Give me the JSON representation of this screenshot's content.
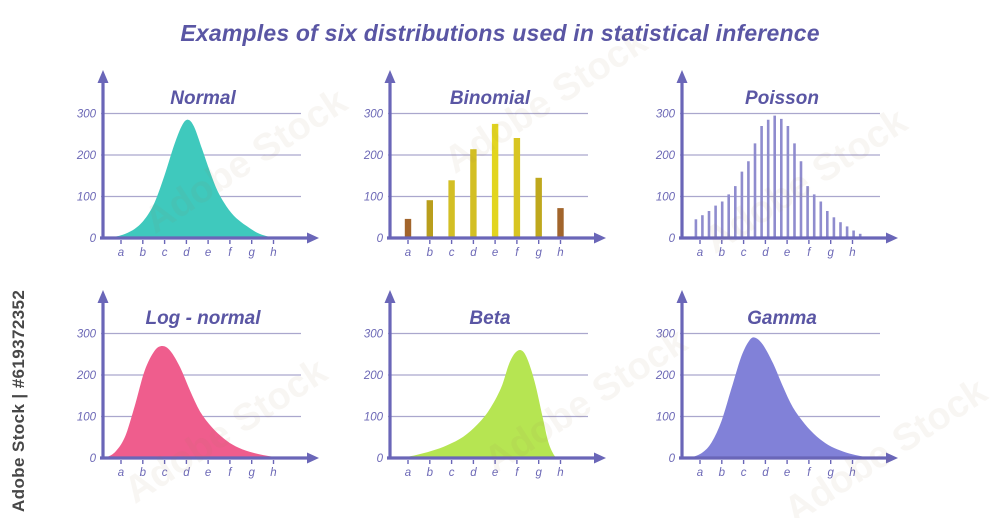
{
  "page": {
    "title": "Examples of six distributions used in statistical inference",
    "title_color": "#5a56a4",
    "background_color": "#ffffff"
  },
  "watermark": {
    "side_text": "Adobe Stock | #619372352",
    "diagonal_text": "Adobe Stock"
  },
  "axes": {
    "axis_color": "#6a66b8",
    "grid_color": "#aaa7cd",
    "label_color": "#6c68b6",
    "y_tick_labels": [
      "0",
      "100",
      "200",
      "300"
    ],
    "y_tick_values": [
      0,
      100,
      200,
      300
    ],
    "x_tick_labels": [
      "a",
      "b",
      "c",
      "d",
      "e",
      "f",
      "g",
      "h"
    ],
    "ylim": [
      0,
      300
    ],
    "grid": "horizontal-only",
    "legend": "none"
  },
  "chart_data": [
    {
      "title": "Normal",
      "type": "area",
      "color": "#3fc9bd",
      "peak_value": 285,
      "peak_at": "d",
      "points": [
        [
          0.03,
          0
        ],
        [
          0.1,
          8
        ],
        [
          0.16,
          22
        ],
        [
          0.21,
          45
        ],
        [
          0.26,
          85
        ],
        [
          0.31,
          150
        ],
        [
          0.36,
          225
        ],
        [
          0.4,
          272
        ],
        [
          0.43,
          285
        ],
        [
          0.46,
          268
        ],
        [
          0.5,
          215
        ],
        [
          0.54,
          160
        ],
        [
          0.58,
          112
        ],
        [
          0.63,
          72
        ],
        [
          0.68,
          45
        ],
        [
          0.74,
          24
        ],
        [
          0.79,
          10
        ],
        [
          0.84,
          3
        ],
        [
          0.88,
          0
        ]
      ]
    },
    {
      "title": "Binomial",
      "type": "bar",
      "categories": [
        "a",
        "b",
        "c",
        "d",
        "e",
        "f",
        "g",
        "h"
      ],
      "values": [
        46,
        91,
        139,
        214,
        275,
        241,
        145,
        72
      ],
      "bar_colors": [
        "#a2652c",
        "#b99e1c",
        "#d3bf24",
        "#d3bf24",
        "#e2d51f",
        "#d8c522",
        "#bfa81d",
        "#a2652c"
      ]
    },
    {
      "title": "Poisson",
      "type": "comb",
      "color": "#8f8cce",
      "peak_value": 295,
      "peak_at": "d",
      "values": [
        45,
        55,
        65,
        78,
        88,
        105,
        125,
        160,
        185,
        228,
        270,
        285,
        295,
        287,
        270,
        228,
        185,
        125,
        105,
        88,
        65,
        50,
        38,
        28,
        18,
        10
      ]
    },
    {
      "title": "Log - normal",
      "type": "area",
      "color": "#ef5d8d",
      "peak_value": 270,
      "peak_at": "c",
      "points": [
        [
          0.01,
          0
        ],
        [
          0.06,
          14
        ],
        [
          0.11,
          50
        ],
        [
          0.16,
          125
        ],
        [
          0.21,
          210
        ],
        [
          0.26,
          258
        ],
        [
          0.3,
          270
        ],
        [
          0.34,
          258
        ],
        [
          0.39,
          218
        ],
        [
          0.44,
          162
        ],
        [
          0.49,
          112
        ],
        [
          0.55,
          74
        ],
        [
          0.61,
          47
        ],
        [
          0.67,
          28
        ],
        [
          0.74,
          15
        ],
        [
          0.81,
          7
        ],
        [
          0.88,
          2
        ],
        [
          0.93,
          0
        ]
      ]
    },
    {
      "title": "Beta",
      "type": "area",
      "color": "#b6e552",
      "peak_value": 260,
      "peak_at": "f",
      "points": [
        [
          0.05,
          0
        ],
        [
          0.13,
          7
        ],
        [
          0.21,
          17
        ],
        [
          0.29,
          31
        ],
        [
          0.37,
          51
        ],
        [
          0.44,
          80
        ],
        [
          0.5,
          115
        ],
        [
          0.56,
          168
        ],
        [
          0.6,
          225
        ],
        [
          0.63,
          252
        ],
        [
          0.66,
          260
        ],
        [
          0.69,
          243
        ],
        [
          0.73,
          185
        ],
        [
          0.77,
          100
        ],
        [
          0.8,
          38
        ],
        [
          0.83,
          6
        ],
        [
          0.85,
          0
        ]
      ]
    },
    {
      "title": "Gamma",
      "type": "area",
      "color": "#8181d8",
      "peak_value": 290,
      "peak_at": "c-d",
      "points": [
        [
          0.04,
          0
        ],
        [
          0.1,
          12
        ],
        [
          0.15,
          38
        ],
        [
          0.2,
          90
        ],
        [
          0.25,
          168
        ],
        [
          0.3,
          245
        ],
        [
          0.34,
          283
        ],
        [
          0.37,
          290
        ],
        [
          0.41,
          272
        ],
        [
          0.46,
          228
        ],
        [
          0.51,
          172
        ],
        [
          0.56,
          122
        ],
        [
          0.62,
          82
        ],
        [
          0.68,
          52
        ],
        [
          0.74,
          31
        ],
        [
          0.8,
          18
        ],
        [
          0.86,
          9
        ],
        [
          0.92,
          3
        ],
        [
          0.97,
          0
        ]
      ]
    }
  ]
}
